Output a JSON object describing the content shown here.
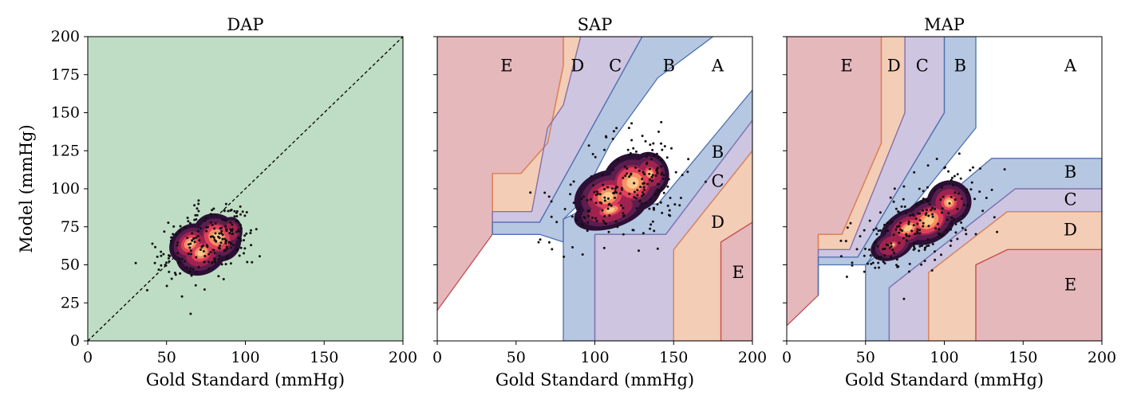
{
  "chart_data": [
    {
      "type": "scatter",
      "title": "DAP",
      "xlabel": "Gold Standard (mmHg)",
      "ylabel": "Model (mmHg)",
      "xlim": [
        0,
        200
      ],
      "ylim": [
        0,
        200
      ],
      "xticks": [
        "0",
        "50",
        "100",
        "150",
        "200"
      ],
      "yticks": [
        "0",
        "25",
        "50",
        "75",
        "100",
        "125",
        "150",
        "175",
        "200"
      ],
      "identity_line": true,
      "zone_labels": [],
      "density_clusters": [
        {
          "x": 65,
          "y": 64,
          "sx": 6,
          "sy": 5,
          "rot": 0.7,
          "w": 1.0
        },
        {
          "x": 82,
          "y": 68,
          "sx": 6,
          "sy": 7,
          "rot": 0.8,
          "w": 1.2
        },
        {
          "x": 91,
          "y": 72,
          "sx": 3,
          "sy": 4,
          "rot": 0.0,
          "w": 0.6
        },
        {
          "x": 72,
          "y": 58,
          "sx": 7,
          "sy": 6,
          "rot": 0.5,
          "w": 0.9
        }
      ],
      "zones": [
        {
          "zone": "A",
          "color": "#bfddc5",
          "polygons": [
            [
              [
                0,
                0
              ],
              [
                200,
                0
              ],
              [
                200,
                200
              ],
              [
                0,
                200
              ]
            ]
          ]
        }
      ]
    },
    {
      "type": "scatter",
      "title": "SAP",
      "xlabel": "Gold Standard (mmHg)",
      "ylabel": "",
      "xlim": [
        0,
        200
      ],
      "ylim": [
        0,
        200
      ],
      "xticks": [
        "0",
        "50",
        "100",
        "150",
        "200"
      ],
      "yticks": [],
      "identity_line": false,
      "zone_labels": [
        {
          "text": "E",
          "x": 44,
          "y": 181
        },
        {
          "text": "D",
          "x": 89,
          "y": 181
        },
        {
          "text": "C",
          "x": 113,
          "y": 181
        },
        {
          "text": "B",
          "x": 147,
          "y": 181
        },
        {
          "text": "A",
          "x": 178,
          "y": 181
        },
        {
          "text": "B",
          "x": 178,
          "y": 124
        },
        {
          "text": "C",
          "x": 178,
          "y": 105
        },
        {
          "text": "D",
          "x": 178,
          "y": 78
        },
        {
          "text": "E",
          "x": 191,
          "y": 45
        }
      ],
      "density_clusters": [
        {
          "x": 108,
          "y": 95,
          "sx": 9,
          "sy": 7,
          "rot": 0.35,
          "w": 1.0
        },
        {
          "x": 124,
          "y": 104,
          "sx": 8,
          "sy": 8,
          "rot": 0.4,
          "w": 1.2
        },
        {
          "x": 110,
          "y": 86,
          "sx": 10,
          "sy": 5,
          "rot": 0.3,
          "w": 0.7
        },
        {
          "x": 135,
          "y": 110,
          "sx": 5,
          "sy": 6,
          "rot": 0.3,
          "w": 0.7
        }
      ],
      "zones": [
        {
          "zone": "E",
          "color": "#e5b8bb",
          "polygons": [
            [
              [
                0,
                20
              ],
              [
                0,
                200
              ],
              [
                80,
                200
              ],
              [
                80,
                181
              ],
              [
                70,
                130
              ],
              [
                53,
                110
              ],
              [
                35,
                110
              ],
              [
                35,
                70
              ]
            ]
          ]
        },
        {
          "zone": "D",
          "color": "#f3cdb5",
          "polygons": [
            [
              [
                35,
                70
              ],
              [
                35,
                110
              ],
              [
                53,
                110
              ],
              [
                70,
                130
              ],
              [
                80,
                181
              ],
              [
                80,
                200
              ],
              [
                91,
                200
              ],
              [
                80,
                155
              ],
              [
                70,
                140
              ],
              [
                60,
                85
              ],
              [
                35,
                85
              ]
            ]
          ]
        },
        {
          "zone": "C",
          "color": "#cec5e1",
          "polygons": [
            [
              [
                35,
                70
              ],
              [
                35,
                85
              ],
              [
                60,
                85
              ],
              [
                70,
                140
              ],
              [
                80,
                155
              ],
              [
                91,
                200
              ],
              [
                130,
                200
              ],
              [
                65,
                78
              ],
              [
                35,
                78
              ]
            ]
          ]
        },
        {
          "zone": "B",
          "color": "#b6c7e1",
          "polygons": [
            [
              [
                35,
                70
              ],
              [
                35,
                78
              ],
              [
                65,
                78
              ],
              [
                130,
                200
              ],
              [
                175,
                200
              ],
              [
                140,
                173
              ],
              [
                110,
                130
              ],
              [
                90,
                90
              ],
              [
                80,
                80
              ],
              [
                80,
                65
              ],
              [
                65,
                70
              ]
            ],
            [
              [
                80,
                0
              ],
              [
                80,
                65
              ],
              [
                80,
                80
              ],
              [
                100,
                90
              ],
              [
                140,
                90
              ],
              [
                200,
                165
              ],
              [
                200,
                145
              ],
              [
                145,
                70
              ],
              [
                100,
                70
              ],
              [
                100,
                0
              ]
            ]
          ]
        },
        {
          "zone": "C",
          "color": "#cec5e1",
          "polygons": [
            [
              [
                100,
                0
              ],
              [
                100,
                70
              ],
              [
                145,
                70
              ],
              [
                200,
                145
              ],
              [
                200,
                125
              ],
              [
                150,
                60
              ],
              [
                150,
                0
              ]
            ]
          ]
        },
        {
          "zone": "D",
          "color": "#f3cdb5",
          "polygons": [
            [
              [
                150,
                0
              ],
              [
                150,
                60
              ],
              [
                200,
                125
              ],
              [
                200,
                78
              ],
              [
                180,
                65
              ],
              [
                180,
                0
              ]
            ]
          ]
        },
        {
          "zone": "E",
          "color": "#e5b8bb",
          "polygons": [
            [
              [
                180,
                0
              ],
              [
                180,
                65
              ],
              [
                200,
                78
              ],
              [
                200,
                0
              ]
            ]
          ]
        }
      ]
    },
    {
      "type": "scatter",
      "title": "MAP",
      "xlabel": "Gold Standard (mmHg)",
      "ylabel": "",
      "xlim": [
        0,
        200
      ],
      "ylim": [
        0,
        200
      ],
      "xticks": [
        "0",
        "50",
        "100",
        "150",
        "200"
      ],
      "yticks": [],
      "identity_line": false,
      "zone_labels": [
        {
          "text": "E",
          "x": 38,
          "y": 181
        },
        {
          "text": "D",
          "x": 68,
          "y": 181
        },
        {
          "text": "C",
          "x": 86,
          "y": 181
        },
        {
          "text": "B",
          "x": 110,
          "y": 181
        },
        {
          "text": "A",
          "x": 180,
          "y": 181
        },
        {
          "text": "B",
          "x": 180,
          "y": 111
        },
        {
          "text": "C",
          "x": 180,
          "y": 93
        },
        {
          "text": "D",
          "x": 180,
          "y": 73
        },
        {
          "text": "E",
          "x": 180,
          "y": 37
        }
      ],
      "density_clusters": [
        {
          "x": 90,
          "y": 79,
          "sx": 8,
          "sy": 6,
          "rot": 0.55,
          "w": 1.2
        },
        {
          "x": 77,
          "y": 74,
          "sx": 8,
          "sy": 5,
          "rot": 0.5,
          "w": 0.9
        },
        {
          "x": 103,
          "y": 91,
          "sx": 6,
          "sy": 6,
          "rot": 0.6,
          "w": 0.8
        },
        {
          "x": 67,
          "y": 63,
          "sx": 6,
          "sy": 4,
          "rot": 0.4,
          "w": 0.5
        }
      ],
      "zones": [
        {
          "zone": "E",
          "color": "#e5b8bb",
          "polygons": [
            [
              [
                0,
                10
              ],
              [
                0,
                200
              ],
              [
                60,
                200
              ],
              [
                60,
                130
              ],
              [
                35,
                70
              ],
              [
                20,
                70
              ],
              [
                20,
                30
              ]
            ]
          ]
        },
        {
          "zone": "D",
          "color": "#f3cdb5",
          "polygons": [
            [
              [
                20,
                30
              ],
              [
                20,
                70
              ],
              [
                35,
                70
              ],
              [
                60,
                130
              ],
              [
                60,
                200
              ],
              [
                75,
                200
              ],
              [
                75,
                150
              ],
              [
                40,
                60
              ],
              [
                20,
                60
              ]
            ]
          ]
        },
        {
          "zone": "C",
          "color": "#cec5e1",
          "polygons": [
            [
              [
                20,
                30
              ],
              [
                20,
                60
              ],
              [
                40,
                60
              ],
              [
                75,
                150
              ],
              [
                75,
                200
              ],
              [
                100,
                200
              ],
              [
                100,
                150
              ],
              [
                45,
                55
              ],
              [
                20,
                55
              ]
            ]
          ]
        },
        {
          "zone": "B",
          "color": "#b6c7e1",
          "polygons": [
            [
              [
                20,
                30
              ],
              [
                20,
                55
              ],
              [
                45,
                55
              ],
              [
                100,
                150
              ],
              [
                100,
                200
              ],
              [
                120,
                200
              ],
              [
                120,
                140
              ],
              [
                50,
                50
              ],
              [
                20,
                50
              ]
            ],
            [
              [
                50,
                0
              ],
              [
                50,
                50
              ],
              [
                130,
                120
              ],
              [
                200,
                120
              ],
              [
                200,
                100
              ],
              [
                145,
                100
              ],
              [
                65,
                35
              ],
              [
                65,
                0
              ]
            ]
          ]
        },
        {
          "zone": "C",
          "color": "#cec5e1",
          "polygons": [
            [
              [
                65,
                0
              ],
              [
                65,
                35
              ],
              [
                145,
                100
              ],
              [
                200,
                100
              ],
              [
                200,
                85
              ],
              [
                140,
                85
              ],
              [
                90,
                45
              ],
              [
                90,
                0
              ]
            ]
          ]
        },
        {
          "zone": "D",
          "color": "#f3cdb5",
          "polygons": [
            [
              [
                90,
                0
              ],
              [
                90,
                45
              ],
              [
                140,
                85
              ],
              [
                200,
                85
              ],
              [
                200,
                60
              ],
              [
                140,
                60
              ],
              [
                120,
                50
              ],
              [
                120,
                0
              ]
            ]
          ]
        },
        {
          "zone": "E",
          "color": "#e5b8bb",
          "polygons": [
            [
              [
                120,
                0
              ],
              [
                120,
                50
              ],
              [
                140,
                60
              ],
              [
                200,
                60
              ],
              [
                200,
                0
              ]
            ]
          ]
        }
      ]
    }
  ],
  "colors": {
    "zone_A": "#bfddc5",
    "zone_B": "#b6c7e1",
    "zone_C": "#cec5e1",
    "zone_D": "#f3cdb5",
    "zone_E": "#e5b8bb",
    "boundary_B": "#4d72b0",
    "boundary_C": "#8172b2",
    "boundary_D": "#dd8452",
    "boundary_E": "#c44e52",
    "density_ramp": [
      "#2b0f35",
      "#5c1d4f",
      "#a0234f",
      "#e0405c",
      "#f69062",
      "#fbc88a"
    ],
    "scatter": "#111111"
  }
}
